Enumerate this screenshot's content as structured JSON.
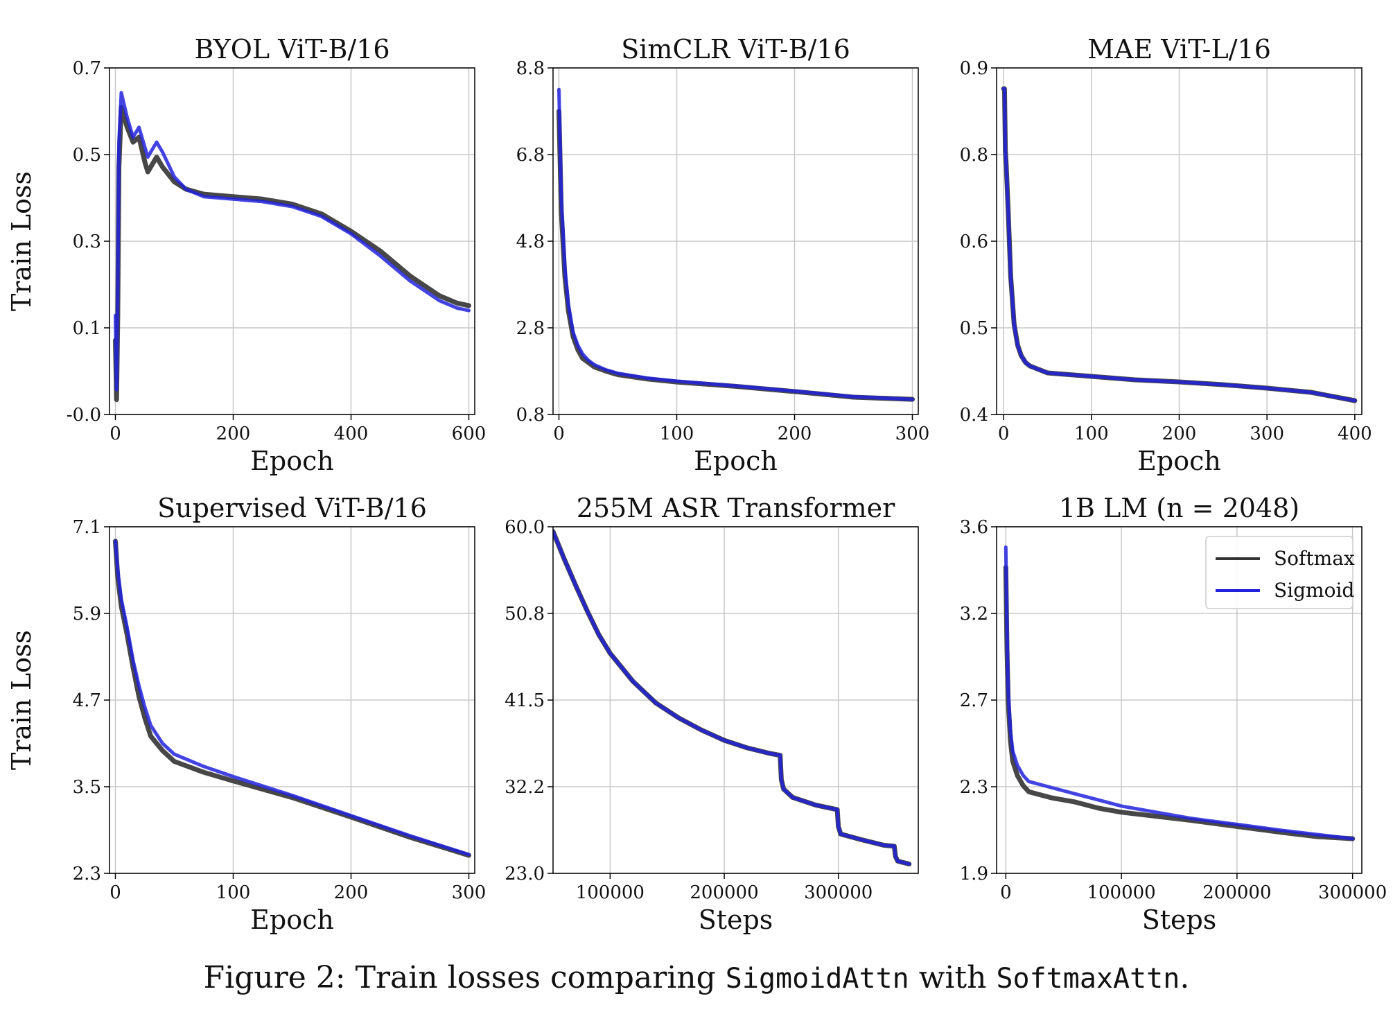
{
  "caption": {
    "prefix": "Figure 2: Train losses comparing ",
    "term1": "SigmoidAttn",
    "middle": " with ",
    "term2": "SoftmaxAttn",
    "suffix": "."
  },
  "colors": {
    "softmax": "#333333",
    "sigmoid": "#2222dd"
  },
  "legend": {
    "panel": 5,
    "position": "top-right",
    "entries": [
      "Softmax",
      "Sigmoid"
    ]
  },
  "chart_data": [
    {
      "type": "line",
      "title": "BYOL ViT-B/16",
      "xlabel": "Epoch",
      "ylabel": "Train Loss",
      "xlim": [
        -10,
        610
      ],
      "ylim": [
        -0.0,
        0.7
      ],
      "xticks": [
        "0",
        "200",
        "400",
        "600"
      ],
      "yticks": [
        "-0.0",
        "0.1",
        "0.3",
        "0.5",
        "0.7"
      ],
      "grid": true,
      "series": [
        {
          "name": "Softmax",
          "x": [
            0,
            2,
            4,
            6,
            10,
            20,
            30,
            40,
            50,
            55,
            60,
            70,
            80,
            100,
            120,
            150,
            200,
            250,
            300,
            350,
            400,
            450,
            500,
            550,
            580,
            600
          ],
          "y": [
            0.15,
            0.03,
            0.2,
            0.5,
            0.62,
            0.58,
            0.55,
            0.56,
            0.51,
            0.49,
            0.5,
            0.52,
            0.5,
            0.47,
            0.455,
            0.445,
            0.44,
            0.435,
            0.425,
            0.405,
            0.37,
            0.33,
            0.28,
            0.24,
            0.225,
            0.22
          ]
        },
        {
          "name": "Sigmoid",
          "x": [
            0,
            2,
            4,
            6,
            10,
            20,
            30,
            40,
            50,
            55,
            60,
            70,
            80,
            100,
            120,
            150,
            200,
            250,
            300,
            350,
            400,
            450,
            500,
            550,
            580,
            600
          ],
          "y": [
            0.2,
            0.05,
            0.25,
            0.55,
            0.65,
            0.6,
            0.56,
            0.58,
            0.54,
            0.52,
            0.53,
            0.55,
            0.53,
            0.48,
            0.455,
            0.44,
            0.435,
            0.43,
            0.42,
            0.4,
            0.365,
            0.32,
            0.27,
            0.23,
            0.215,
            0.21
          ]
        }
      ]
    },
    {
      "type": "line",
      "title": "SimCLR ViT-B/16",
      "xlabel": "Epoch",
      "ylabel": "",
      "xlim": [
        -5,
        305
      ],
      "ylim": [
        0.8,
        8.8
      ],
      "xticks": [
        "0",
        "100",
        "200",
        "300"
      ],
      "yticks": [
        "0.8",
        "2.8",
        "4.8",
        "6.8",
        "8.8"
      ],
      "grid": true,
      "series": [
        {
          "name": "Softmax",
          "x": [
            0,
            2,
            5,
            8,
            12,
            16,
            20,
            25,
            30,
            40,
            50,
            75,
            100,
            150,
            200,
            250,
            300
          ],
          "y": [
            7.8,
            5.5,
            4.0,
            3.2,
            2.6,
            2.3,
            2.1,
            2.0,
            1.9,
            1.8,
            1.72,
            1.62,
            1.55,
            1.45,
            1.33,
            1.2,
            1.15
          ]
        },
        {
          "name": "Sigmoid",
          "x": [
            0,
            2,
            5,
            8,
            12,
            16,
            20,
            25,
            30,
            40,
            50,
            75,
            100,
            150,
            200,
            250,
            300
          ],
          "y": [
            8.3,
            5.8,
            4.2,
            3.35,
            2.7,
            2.4,
            2.2,
            2.05,
            1.95,
            1.83,
            1.75,
            1.64,
            1.57,
            1.46,
            1.34,
            1.21,
            1.15
          ]
        }
      ]
    },
    {
      "type": "line",
      "title": "MAE ViT-L/16",
      "xlabel": "Epoch",
      "ylabel": "",
      "xlim": [
        -8,
        408
      ],
      "ylim": [
        0.4,
        0.9
      ],
      "xticks": [
        "0",
        "100",
        "200",
        "300",
        "400"
      ],
      "yticks": [
        "0.4",
        "0.5",
        "0.6",
        "0.8",
        "0.9"
      ],
      "grid": true,
      "series": [
        {
          "name": "Softmax",
          "x": [
            0,
            1,
            2,
            3,
            5,
            8,
            12,
            16,
            20,
            25,
            30,
            40,
            50,
            100,
            150,
            200,
            250,
            300,
            350,
            400
          ],
          "y": [
            0.87,
            0.87,
            0.78,
            0.76,
            0.7,
            0.6,
            0.53,
            0.5,
            0.485,
            0.475,
            0.47,
            0.465,
            0.46,
            0.455,
            0.45,
            0.447,
            0.443,
            0.438,
            0.432,
            0.42
          ]
        },
        {
          "name": "Sigmoid",
          "x": [
            0,
            1,
            2,
            3,
            5,
            8,
            12,
            16,
            20,
            25,
            30,
            40,
            50,
            100,
            150,
            200,
            250,
            300,
            350,
            400
          ],
          "y": [
            0.87,
            0.87,
            0.78,
            0.76,
            0.7,
            0.6,
            0.53,
            0.5,
            0.485,
            0.475,
            0.47,
            0.465,
            0.46,
            0.455,
            0.45,
            0.447,
            0.443,
            0.438,
            0.432,
            0.42
          ]
        }
      ]
    },
    {
      "type": "line",
      "title": "Supervised ViT-B/16",
      "xlabel": "Epoch",
      "ylabel": "Train Loss",
      "xlim": [
        -5,
        305
      ],
      "ylim": [
        2.3,
        7.1
      ],
      "xticks": [
        "0",
        "100",
        "200",
        "300"
      ],
      "yticks": [
        "2.3",
        "3.5",
        "4.7",
        "5.9",
        "7.1"
      ],
      "grid": true,
      "series": [
        {
          "name": "Softmax",
          "x": [
            0,
            2,
            5,
            10,
            15,
            20,
            25,
            30,
            40,
            50,
            75,
            100,
            150,
            200,
            250,
            300
          ],
          "y": [
            6.9,
            6.4,
            6.0,
            5.6,
            5.15,
            4.75,
            4.45,
            4.2,
            4.0,
            3.85,
            3.7,
            3.58,
            3.35,
            3.08,
            2.8,
            2.55
          ]
        },
        {
          "name": "Sigmoid",
          "x": [
            0,
            2,
            5,
            10,
            15,
            20,
            25,
            30,
            40,
            50,
            75,
            100,
            150,
            200,
            250,
            300
          ],
          "y": [
            6.9,
            6.5,
            6.1,
            5.7,
            5.25,
            4.9,
            4.6,
            4.35,
            4.1,
            3.95,
            3.78,
            3.64,
            3.38,
            3.1,
            2.82,
            2.56
          ]
        }
      ]
    },
    {
      "type": "line",
      "title": "255M ASR Transformer",
      "xlabel": "Steps",
      "ylabel": "",
      "xlim": [
        50000,
        370000
      ],
      "ylim": [
        23.0,
        60.0
      ],
      "xticks": [
        "100000",
        "200000",
        "300000"
      ],
      "yticks": [
        "23.0",
        "32.2",
        "41.5",
        "50.8",
        "60.0"
      ],
      "grid": true,
      "series": [
        {
          "name": "Softmax",
          "x": [
            50000,
            60000,
            70000,
            80000,
            90000,
            100000,
            120000,
            140000,
            160000,
            180000,
            200000,
            220000,
            240000,
            249000,
            250000,
            252000,
            260000,
            280000,
            299000,
            300000,
            302000,
            320000,
            340000,
            349000,
            350000,
            352000,
            362000
          ],
          "y": [
            59.5,
            56.5,
            53.7,
            51.0,
            48.5,
            46.5,
            43.5,
            41.2,
            39.6,
            38.3,
            37.2,
            36.4,
            35.8,
            35.6,
            33.0,
            32.0,
            31.1,
            30.3,
            29.8,
            28.0,
            27.2,
            26.6,
            26.0,
            25.9,
            24.8,
            24.3,
            24.0
          ]
        },
        {
          "name": "Sigmoid",
          "x": [
            50000,
            60000,
            70000,
            80000,
            90000,
            100000,
            120000,
            140000,
            160000,
            180000,
            200000,
            220000,
            240000,
            249000,
            250000,
            252000,
            260000,
            280000,
            299000,
            300000,
            302000,
            320000,
            340000,
            349000,
            350000,
            352000,
            362000
          ],
          "y": [
            59.5,
            56.5,
            53.7,
            51.0,
            48.5,
            46.5,
            43.5,
            41.2,
            39.6,
            38.3,
            37.2,
            36.4,
            35.8,
            35.6,
            33.0,
            32.0,
            31.1,
            30.3,
            29.8,
            28.0,
            27.2,
            26.6,
            26.0,
            25.9,
            24.8,
            24.3,
            24.0
          ]
        }
      ]
    },
    {
      "type": "line",
      "title": "1B LM (n = 2048)",
      "xlabel": "Steps",
      "ylabel": "",
      "xlim": [
        -8000,
        308000
      ],
      "ylim": [
        1.9,
        3.6
      ],
      "xticks": [
        "0",
        "100000",
        "200000",
        "300000"
      ],
      "yticks": [
        "1.9",
        "2.3",
        "2.7",
        "3.2",
        "3.6"
      ],
      "grid": true,
      "series": [
        {
          "name": "Softmax",
          "x": [
            0,
            1000,
            2000,
            4000,
            6000,
            10000,
            15000,
            20000,
            40000,
            60000,
            80000,
            100000,
            130000,
            160000,
            200000,
            240000,
            270000,
            300000
          ],
          "y": [
            3.4,
            3.0,
            2.75,
            2.55,
            2.45,
            2.38,
            2.33,
            2.3,
            2.27,
            2.25,
            2.22,
            2.2,
            2.18,
            2.16,
            2.13,
            2.1,
            2.08,
            2.07
          ]
        },
        {
          "name": "Sigmoid",
          "x": [
            0,
            1000,
            2000,
            4000,
            6000,
            10000,
            15000,
            20000,
            40000,
            60000,
            80000,
            100000,
            130000,
            160000,
            200000,
            240000,
            270000,
            300000
          ],
          "y": [
            3.5,
            3.1,
            2.8,
            2.6,
            2.5,
            2.43,
            2.38,
            2.35,
            2.32,
            2.29,
            2.26,
            2.23,
            2.2,
            2.17,
            2.14,
            2.11,
            2.09,
            2.07
          ]
        }
      ]
    }
  ]
}
